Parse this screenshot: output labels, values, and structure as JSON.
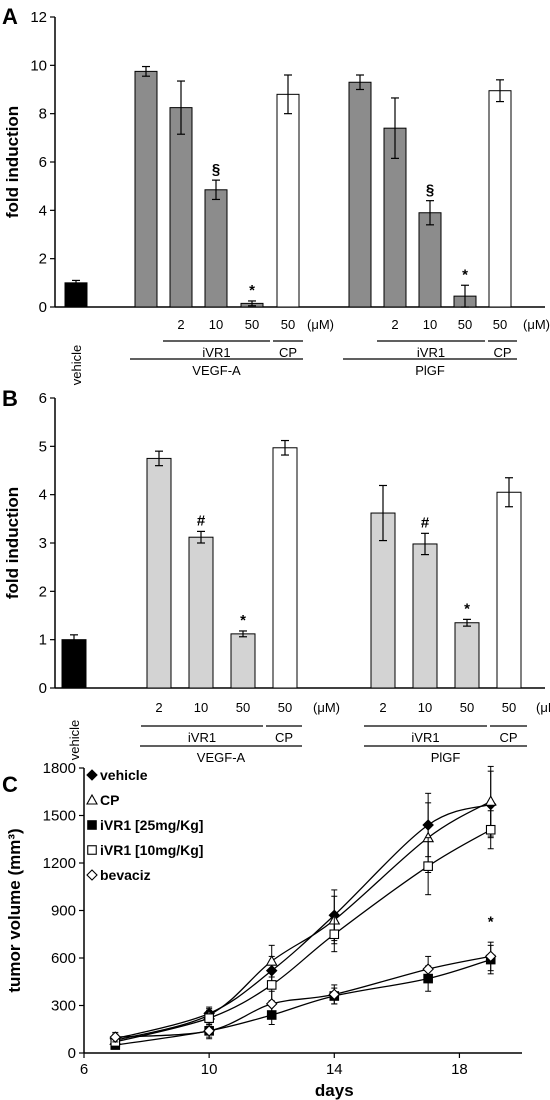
{
  "panels": {
    "A": {
      "letter": "A",
      "ylabel": "fold induction",
      "ylim": [
        0,
        12
      ],
      "yticks": [
        0,
        2,
        4,
        6,
        8,
        10,
        12
      ],
      "unit": "(μM)",
      "vehicle_label": "vehicle",
      "groups": [
        "VEGF-A",
        "PlGF"
      ],
      "drug_label": "iVR1",
      "control_label": "CP"
    },
    "B": {
      "letter": "B",
      "ylabel": "fold induction",
      "ylim": [
        0,
        6
      ],
      "yticks": [
        0,
        1,
        2,
        3,
        4,
        5,
        6
      ],
      "unit": "(μM)",
      "vehicle_label": "vehicle",
      "groups": [
        "VEGF-A",
        "PlGF"
      ],
      "drug_label": "iVR1",
      "control_label": "CP"
    },
    "C": {
      "letter": "C",
      "ylabel": "tumor volume (mm³)",
      "xlabel": "days",
      "xticks": [
        6,
        10,
        14,
        18
      ],
      "yticks": [
        0,
        300,
        600,
        900,
        1200,
        1500,
        1800
      ],
      "sig_label": "*"
    }
  },
  "chart_data": [
    {
      "type": "bar",
      "panel": "A",
      "ylim": [
        0,
        12
      ],
      "colors": {
        "vehicle": "#000000",
        "stimulus": "#8c8c8c",
        "control": "#ffffff"
      },
      "bars": [
        {
          "group": "vehicle",
          "dose": "",
          "kind": "vehicle",
          "value": 1.0,
          "err": 0.1,
          "mark": ""
        },
        {
          "group": "VEGF-A",
          "dose": "",
          "kind": "stimulus",
          "value": 9.75,
          "err": 0.2,
          "mark": ""
        },
        {
          "group": "VEGF-A",
          "dose": "2",
          "kind": "stimulus",
          "value": 8.25,
          "err": 1.1,
          "mark": ""
        },
        {
          "group": "VEGF-A",
          "dose": "10",
          "kind": "stimulus",
          "value": 4.85,
          "err": 0.4,
          "mark": "§"
        },
        {
          "group": "VEGF-A",
          "dose": "50",
          "kind": "stimulus",
          "value": 0.15,
          "err": 0.1,
          "mark": "*"
        },
        {
          "group": "VEGF-A",
          "dose": "50",
          "kind": "control",
          "value": 8.8,
          "err": 0.8,
          "mark": ""
        },
        {
          "group": "PlGF",
          "dose": "",
          "kind": "stimulus",
          "value": 9.3,
          "err": 0.3,
          "mark": ""
        },
        {
          "group": "PlGF",
          "dose": "2",
          "kind": "stimulus",
          "value": 7.4,
          "err": 1.25,
          "mark": ""
        },
        {
          "group": "PlGF",
          "dose": "10",
          "kind": "stimulus",
          "value": 3.9,
          "err": 0.5,
          "mark": "§"
        },
        {
          "group": "PlGF",
          "dose": "50",
          "kind": "stimulus",
          "value": 0.45,
          "err": 0.45,
          "mark": "*"
        },
        {
          "group": "PlGF",
          "dose": "50",
          "kind": "control",
          "value": 8.95,
          "err": 0.45,
          "mark": ""
        }
      ]
    },
    {
      "type": "bar",
      "panel": "B",
      "ylim": [
        0,
        6
      ],
      "colors": {
        "vehicle": "#000000",
        "stimulus": "#d3d3d3",
        "control": "#ffffff"
      },
      "bars": [
        {
          "group": "vehicle",
          "dose": "",
          "kind": "vehicle",
          "value": 1.0,
          "err": 0.1,
          "mark": ""
        },
        {
          "group": "VEGF-A",
          "dose": "2",
          "kind": "stimulus",
          "value": 4.75,
          "err": 0.15,
          "mark": ""
        },
        {
          "group": "VEGF-A",
          "dose": "10",
          "kind": "stimulus",
          "value": 3.12,
          "err": 0.12,
          "mark": "#"
        },
        {
          "group": "VEGF-A",
          "dose": "50",
          "kind": "stimulus",
          "value": 1.12,
          "err": 0.06,
          "mark": "*"
        },
        {
          "group": "VEGF-A",
          "dose": "50",
          "kind": "control",
          "value": 4.97,
          "err": 0.15,
          "mark": ""
        },
        {
          "group": "PlGF",
          "dose": "2",
          "kind": "stimulus",
          "value": 3.62,
          "err": 0.57,
          "mark": ""
        },
        {
          "group": "PlGF",
          "dose": "10",
          "kind": "stimulus",
          "value": 2.98,
          "err": 0.22,
          "mark": "#"
        },
        {
          "group": "PlGF",
          "dose": "50",
          "kind": "stimulus",
          "value": 1.35,
          "err": 0.07,
          "mark": "*"
        },
        {
          "group": "PlGF",
          "dose": "50",
          "kind": "control",
          "value": 4.05,
          "err": 0.3,
          "mark": ""
        }
      ]
    },
    {
      "type": "line",
      "panel": "C",
      "xlim": [
        6,
        20
      ],
      "ylim": [
        0,
        1800
      ],
      "legend_position": "top-left",
      "x": [
        7,
        10,
        12,
        14,
        17,
        19
      ],
      "series": [
        {
          "name": "vehicle",
          "marker": "diamond-filled",
          "values": [
            90,
            250,
            520,
            870,
            1440,
            1570
          ],
          "err": [
            30,
            40,
            90,
            160,
            200,
            210
          ]
        },
        {
          "name": "CP",
          "marker": "triangle-open",
          "values": [
            80,
            240,
            580,
            840,
            1360,
            1590
          ],
          "err": [
            25,
            40,
            100,
            150,
            220,
            220
          ]
        },
        {
          "name": "iVR1  [25mg/Kg]",
          "marker": "square-filled",
          "values": [
            50,
            140,
            240,
            360,
            470,
            590
          ],
          "err": [
            20,
            40,
            60,
            50,
            80,
            90
          ]
        },
        {
          "name": "iVR1  [10mg/Kg]",
          "marker": "square-open",
          "values": [
            70,
            220,
            430,
            750,
            1180,
            1410
          ],
          "err": [
            25,
            50,
            100,
            110,
            180,
            120
          ]
        },
        {
          "name": "bevaciz",
          "marker": "diamond-open",
          "values": [
            100,
            140,
            310,
            370,
            530,
            610
          ],
          "err": [
            30,
            50,
            80,
            60,
            80,
            90
          ]
        }
      ]
    }
  ]
}
